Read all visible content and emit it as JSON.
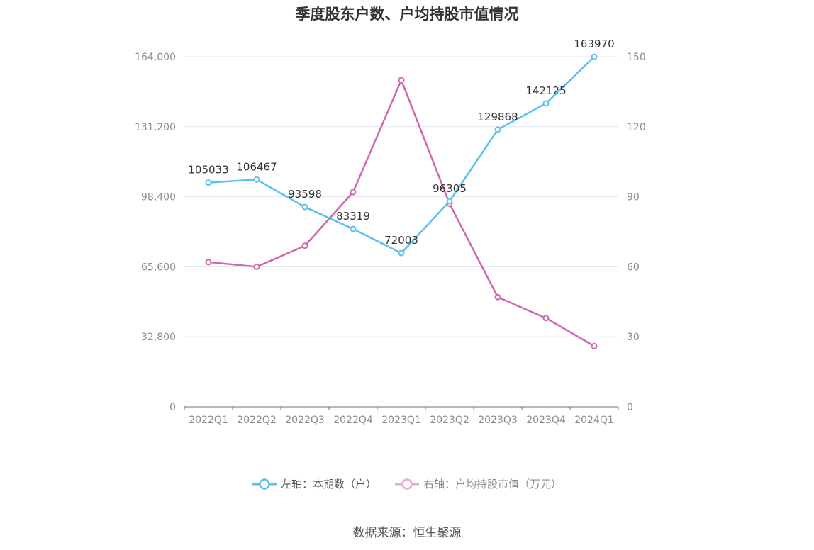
{
  "chart_data": {
    "type": "line",
    "title": "季度股东户数、户均持股市值情况",
    "categories": [
      "2022Q1",
      "2022Q2",
      "2022Q3",
      "2022Q4",
      "2023Q1",
      "2023Q2",
      "2023Q3",
      "2023Q4",
      "2024Q1"
    ],
    "left_axis": {
      "ticks": [
        "0",
        "32,800",
        "65,600",
        "98,400",
        "131,200",
        "164,000"
      ],
      "ylim": [
        0,
        164000
      ]
    },
    "right_axis": {
      "ticks": [
        "0",
        "30",
        "60",
        "90",
        "120",
        "150"
      ],
      "ylim": [
        0,
        150
      ]
    },
    "series": [
      {
        "name": "左轴：本期数（户）",
        "axis": "left",
        "color": "#5bc0ef",
        "values": [
          105033,
          106467,
          93598,
          83319,
          72003,
          96305,
          129868,
          142125,
          163970
        ],
        "labels": [
          "105033",
          "106467",
          "93598",
          "83319",
          "72003",
          "96305",
          "129868",
          "142125",
          "163970"
        ]
      },
      {
        "name": "右轴：户均持股市值（万元）",
        "axis": "right",
        "color": "#d166b0",
        "values": [
          62,
          60,
          69,
          92,
          140,
          87,
          47,
          38,
          26
        ]
      }
    ],
    "grid": true,
    "legend_position": "bottom"
  },
  "source": "数据来源：恒生聚源"
}
